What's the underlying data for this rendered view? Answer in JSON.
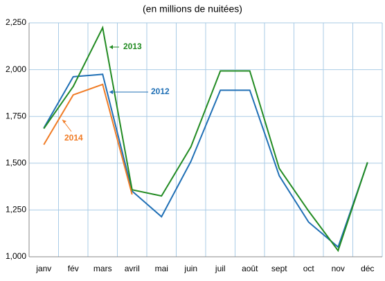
{
  "chart_data": {
    "type": "line",
    "title": "(en millions de nuitées)",
    "categories": [
      "janv",
      "fév",
      "mars",
      "avril",
      "mai",
      "juin",
      "juil",
      "août",
      "sept",
      "oct",
      "nov",
      "déc"
    ],
    "series": [
      {
        "name": "2012",
        "color": "#1f6fb5",
        "values": [
          1688,
          1962,
          1975,
          1351,
          1214,
          1510,
          1890,
          1890,
          1433,
          1185,
          1052,
          1503
        ]
      },
      {
        "name": "2013",
        "color": "#228b22",
        "values": [
          1685,
          1910,
          2224,
          1358,
          1325,
          1588,
          1993,
          1993,
          1472,
          1244,
          1033,
          1505
        ]
      },
      {
        "name": "2014",
        "color": "#f07b24",
        "values": [
          1599,
          1865,
          1921,
          1333,
          null,
          null,
          null,
          null,
          null,
          null,
          null,
          null
        ]
      }
    ],
    "ylim": [
      1000,
      2250
    ],
    "yticks": [
      {
        "value": 1000,
        "label": "1,000"
      },
      {
        "value": 1250,
        "label": "1,250"
      },
      {
        "value": 1500,
        "label": "1,500"
      },
      {
        "value": 1750,
        "label": "1,750"
      },
      {
        "value": 2000,
        "label": "2,000"
      },
      {
        "value": 2250,
        "label": "2,250"
      }
    ],
    "grid": true
  }
}
